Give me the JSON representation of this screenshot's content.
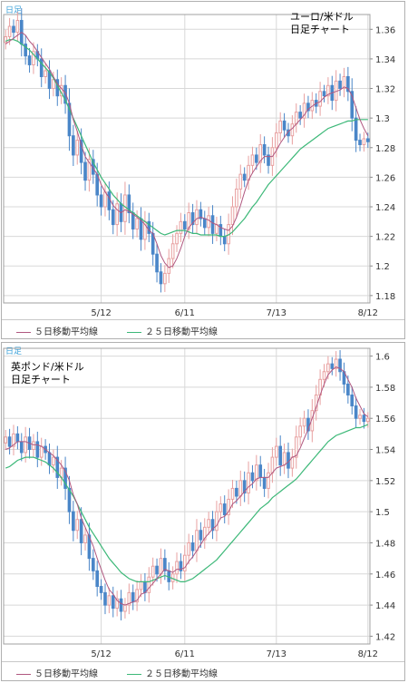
{
  "colors": {
    "up": "#e8a0a0",
    "down": "#4a86c8",
    "ma5": "#b05880",
    "ma25": "#3cb878",
    "grid": "#d8d8d8"
  },
  "legend": {
    "ma5": "５日移動平均線",
    "ma25": "２５日移動平均線"
  },
  "chart_data": [
    {
      "type": "candlestick",
      "title": "ユーロ/米ドル",
      "subtitle": "日足チャート",
      "timeframe_tab": "日足",
      "x_ticks": [
        "5/12",
        "6/11",
        "7/13",
        "8/12"
      ],
      "x_tick_index": [
        24,
        45,
        68,
        91
      ],
      "y_ticks": [
        "1.36",
        "1.34",
        "1.32",
        "1.3",
        "1.28",
        "1.26",
        "1.24",
        "1.22",
        "1.2",
        "1.18"
      ],
      "ylim": [
        1.175,
        1.37
      ],
      "closes": [
        1.355,
        1.362,
        1.358,
        1.366,
        1.35,
        1.342,
        1.336,
        1.345,
        1.34,
        1.328,
        1.332,
        1.32,
        1.326,
        1.315,
        1.322,
        1.31,
        1.288,
        1.275,
        1.285,
        1.27,
        1.258,
        1.272,
        1.262,
        1.248,
        1.24,
        1.25,
        1.238,
        1.228,
        1.242,
        1.23,
        1.248,
        1.236,
        1.225,
        1.232,
        1.218,
        1.23,
        1.222,
        1.208,
        1.196,
        1.188,
        1.195,
        1.205,
        1.215,
        1.222,
        1.23,
        1.225,
        1.236,
        1.228,
        1.238,
        1.232,
        1.226,
        1.234,
        1.222,
        1.228,
        1.22,
        1.215,
        1.228,
        1.24,
        1.252,
        1.262,
        1.258,
        1.268,
        1.275,
        1.27,
        1.282,
        1.275,
        1.268,
        1.28,
        1.29,
        1.298,
        1.292,
        1.288,
        1.296,
        1.304,
        1.3,
        1.31,
        1.305,
        1.312,
        1.308,
        1.318,
        1.315,
        1.322,
        1.312,
        1.325,
        1.32,
        1.328,
        1.318,
        1.3,
        1.285,
        1.282,
        1.286,
        1.284
      ],
      "ma5": [
        1.35,
        1.352,
        1.354,
        1.356,
        1.358,
        1.356,
        1.352,
        1.349,
        1.345,
        1.341,
        1.337,
        1.333,
        1.328,
        1.323,
        1.32,
        1.317,
        1.31,
        1.299,
        1.291,
        1.282,
        1.274,
        1.27,
        1.266,
        1.262,
        1.255,
        1.25,
        1.246,
        1.241,
        1.238,
        1.236,
        1.238,
        1.237,
        1.235,
        1.233,
        1.231,
        1.228,
        1.224,
        1.222,
        1.215,
        1.207,
        1.202,
        1.199,
        1.2,
        1.205,
        1.212,
        1.22,
        1.226,
        1.229,
        1.232,
        1.233,
        1.232,
        1.231,
        1.229,
        1.228,
        1.226,
        1.225,
        1.224,
        1.227,
        1.233,
        1.241,
        1.25,
        1.258,
        1.263,
        1.267,
        1.271,
        1.274,
        1.274,
        1.274,
        1.278,
        1.283,
        1.287,
        1.291,
        1.293,
        1.296,
        1.299,
        1.302,
        1.306,
        1.308,
        1.31,
        1.311,
        1.314,
        1.316,
        1.317,
        1.318,
        1.319,
        1.321,
        1.32,
        1.315,
        1.307,
        1.299,
        1.293,
        1.288
      ],
      "ma25": [
        1.352,
        1.353,
        1.353,
        1.352,
        1.35,
        1.348,
        1.346,
        1.343,
        1.34,
        1.337,
        1.334,
        1.331,
        1.327,
        1.322,
        1.317,
        1.312,
        1.306,
        1.3,
        1.294,
        1.288,
        1.282,
        1.276,
        1.27,
        1.265,
        1.26,
        1.256,
        1.252,
        1.248,
        1.245,
        1.242,
        1.24,
        1.238,
        1.236,
        1.234,
        1.232,
        1.23,
        1.228,
        1.226,
        1.224,
        1.222,
        1.221,
        1.222,
        1.223,
        1.224,
        1.224,
        1.224,
        1.223,
        1.222,
        1.222,
        1.221,
        1.221,
        1.221,
        1.221,
        1.221,
        1.22,
        1.22,
        1.221,
        1.223,
        1.226,
        1.229,
        1.232,
        1.236,
        1.24,
        1.243,
        1.247,
        1.251,
        1.255,
        1.258,
        1.261,
        1.264,
        1.267,
        1.27,
        1.273,
        1.276,
        1.279,
        1.281,
        1.283,
        1.285,
        1.287,
        1.289,
        1.291,
        1.293,
        1.294,
        1.295,
        1.296,
        1.297,
        1.298,
        1.298,
        1.299,
        1.299,
        1.299,
        1.299
      ]
    },
    {
      "type": "candlestick",
      "title": "英ポンド/米ドル",
      "subtitle": "日足チャート",
      "timeframe_tab": "日足",
      "x_ticks": [
        "5/12",
        "6/11",
        "7/13",
        "8/12"
      ],
      "x_tick_index": [
        24,
        45,
        68,
        91
      ],
      "y_ticks": [
        "1.6",
        "1.58",
        "1.56",
        "1.54",
        "1.52",
        "1.5",
        "1.48",
        "1.46",
        "1.44",
        "1.42"
      ],
      "ylim": [
        1.415,
        1.605
      ],
      "closes": [
        1.548,
        1.542,
        1.55,
        1.545,
        1.538,
        1.548,
        1.54,
        1.545,
        1.535,
        1.542,
        1.538,
        1.53,
        1.535,
        1.522,
        1.528,
        1.515,
        1.5,
        1.488,
        1.495,
        1.48,
        1.485,
        1.47,
        1.462,
        1.452,
        1.448,
        1.44,
        1.446,
        1.438,
        1.444,
        1.436,
        1.44,
        1.448,
        1.442,
        1.45,
        1.455,
        1.448,
        1.458,
        1.465,
        1.46,
        1.47,
        1.462,
        1.455,
        1.46,
        1.468,
        1.462,
        1.472,
        1.48,
        1.475,
        1.488,
        1.482,
        1.49,
        1.495,
        1.488,
        1.5,
        1.505,
        1.498,
        1.508,
        1.515,
        1.51,
        1.52,
        1.512,
        1.525,
        1.52,
        1.53,
        1.522,
        1.515,
        1.525,
        1.535,
        1.542,
        1.53,
        1.538,
        1.528,
        1.535,
        1.548,
        1.555,
        1.56,
        1.552,
        1.565,
        1.575,
        1.585,
        1.59,
        1.595,
        1.592,
        1.598,
        1.59,
        1.582,
        1.575,
        1.568,
        1.56,
        1.562,
        1.558,
        1.56
      ],
      "ma5": [
        1.54,
        1.541,
        1.543,
        1.545,
        1.545,
        1.545,
        1.544,
        1.543,
        1.543,
        1.542,
        1.54,
        1.538,
        1.536,
        1.533,
        1.53,
        1.526,
        1.52,
        1.511,
        1.505,
        1.496,
        1.49,
        1.484,
        1.478,
        1.47,
        1.463,
        1.456,
        1.45,
        1.447,
        1.443,
        1.441,
        1.44,
        1.441,
        1.442,
        1.443,
        1.447,
        1.448,
        1.451,
        1.454,
        1.457,
        1.46,
        1.463,
        1.462,
        1.461,
        1.463,
        1.463,
        1.464,
        1.468,
        1.471,
        1.475,
        1.479,
        1.483,
        1.486,
        1.489,
        1.491,
        1.496,
        1.497,
        1.5,
        1.505,
        1.507,
        1.51,
        1.513,
        1.516,
        1.518,
        1.521,
        1.522,
        1.522,
        1.522,
        1.525,
        1.528,
        1.529,
        1.53,
        1.532,
        1.535,
        1.536,
        1.541,
        1.547,
        1.553,
        1.56,
        1.567,
        1.575,
        1.582,
        1.588,
        1.591,
        1.593,
        1.592,
        1.59,
        1.585,
        1.58,
        1.573,
        1.568,
        1.563,
        1.561
      ],
      "ma25": [
        1.528,
        1.529,
        1.531,
        1.533,
        1.534,
        1.535,
        1.535,
        1.535,
        1.534,
        1.533,
        1.532,
        1.53,
        1.528,
        1.525,
        1.522,
        1.518,
        1.514,
        1.51,
        1.505,
        1.5,
        1.495,
        1.49,
        1.486,
        1.482,
        1.478,
        1.474,
        1.47,
        1.467,
        1.464,
        1.461,
        1.459,
        1.457,
        1.456,
        1.455,
        1.455,
        1.455,
        1.455,
        1.456,
        1.457,
        1.458,
        1.459,
        1.458,
        1.457,
        1.456,
        1.455,
        1.455,
        1.456,
        1.457,
        1.459,
        1.461,
        1.463,
        1.465,
        1.467,
        1.469,
        1.472,
        1.475,
        1.478,
        1.481,
        1.484,
        1.487,
        1.49,
        1.493,
        1.496,
        1.499,
        1.502,
        1.504,
        1.506,
        1.509,
        1.511,
        1.513,
        1.515,
        1.517,
        1.519,
        1.521,
        1.524,
        1.527,
        1.53,
        1.533,
        1.536,
        1.539,
        1.542,
        1.545,
        1.547,
        1.549,
        1.55,
        1.551,
        1.552,
        1.553,
        1.554,
        1.554,
        1.555,
        1.556
      ]
    }
  ]
}
